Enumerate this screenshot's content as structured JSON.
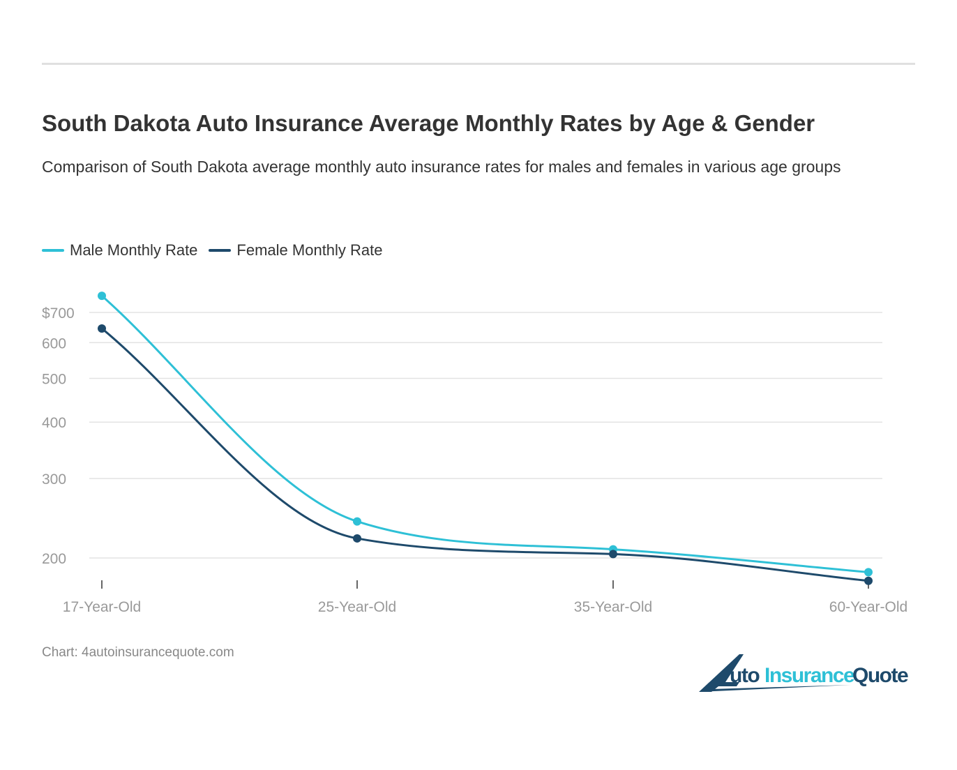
{
  "title": "South Dakota Auto Insurance Average Monthly Rates by Age & Gender",
  "subtitle": "Comparison of South Dakota average monthly auto insurance rates for males and females in various age groups",
  "source": "Chart: 4autoinsurancequote.com",
  "logo": {
    "text": "4AutoInsuranceQuote",
    "colors": {
      "dark": "#1e4a6b",
      "light": "#2ec0d6"
    }
  },
  "chart_data": {
    "type": "line",
    "title": "South Dakota Auto Insurance Average Monthly Rates by Age & Gender",
    "xlabel": "",
    "ylabel": "",
    "categories": [
      "17-Year-Old",
      "25-Year-Old",
      "35-Year-Old",
      "60-Year-Old"
    ],
    "y_scale": "log",
    "ylim": [
      180,
      770
    ],
    "y_ticks": [
      200,
      300,
      400,
      500,
      600,
      700
    ],
    "y_tick_labels": [
      "200",
      "300",
      "400",
      "500",
      "600",
      "$700"
    ],
    "grid": true,
    "legend": "top-left",
    "series": [
      {
        "name": "Male Monthly Rate",
        "color": "#2ec0d6",
        "values": [
          762,
          241,
          209,
          186
        ]
      },
      {
        "name": "Female Monthly Rate",
        "color": "#1e4a6b",
        "values": [
          645,
          221,
          204,
          178
        ]
      }
    ]
  }
}
